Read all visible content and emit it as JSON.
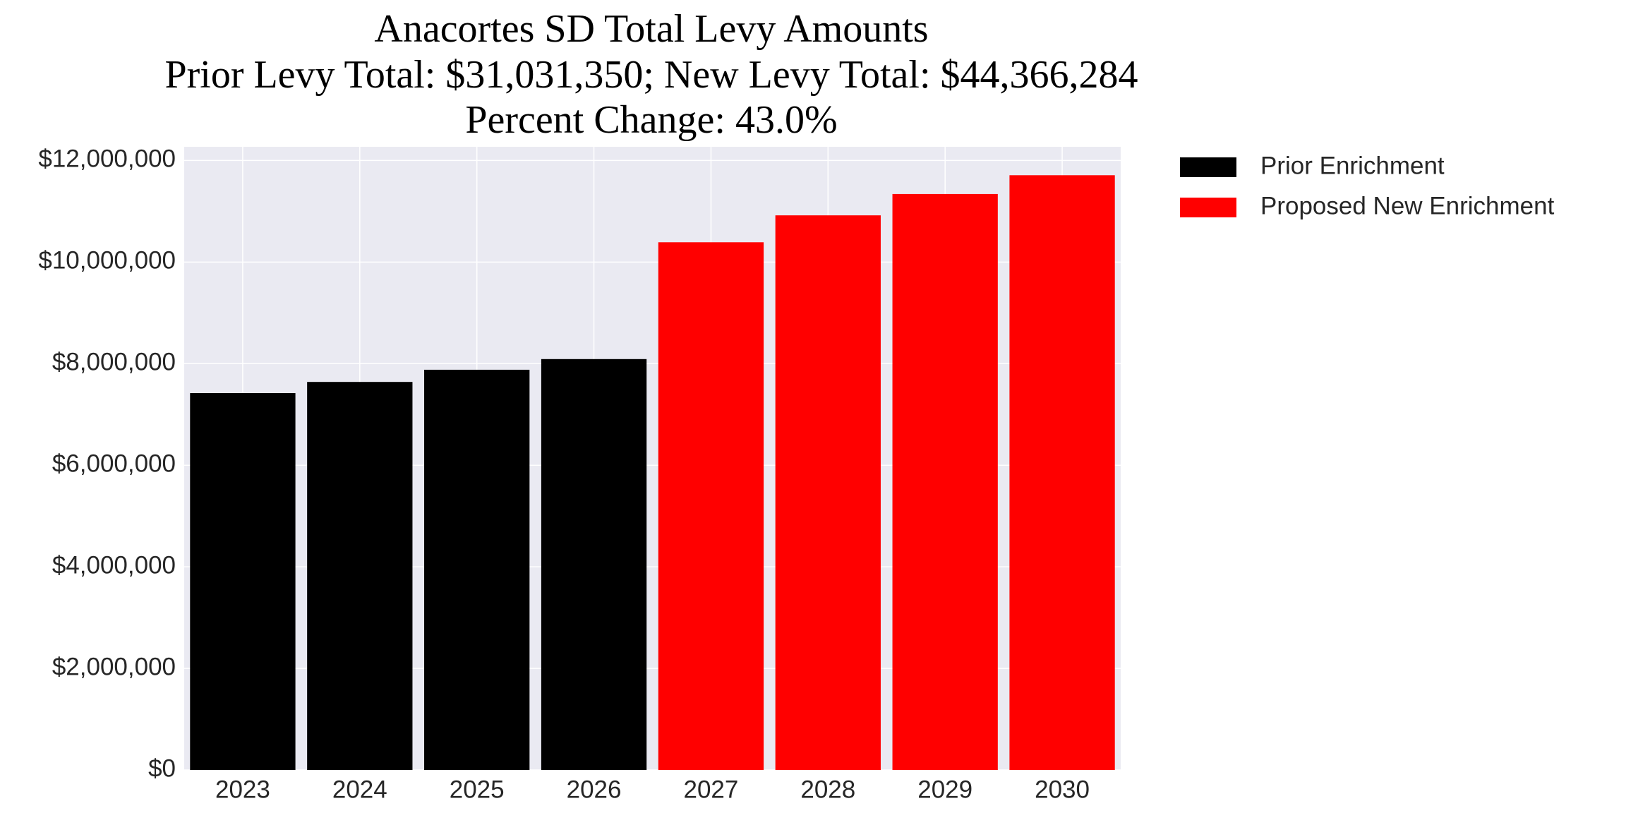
{
  "chart_data": {
    "type": "bar",
    "title": [
      "Anacortes SD Total Levy Amounts",
      "Prior Levy Total:  $31,031,350; New Levy Total: $44,366,284",
      "Percent Change: 43.0%"
    ],
    "categories": [
      "2023",
      "2024",
      "2025",
      "2026",
      "2027",
      "2028",
      "2029",
      "2030"
    ],
    "series": [
      {
        "name": "Prior Enrichment",
        "color": "#000000",
        "values": [
          7420000,
          7640000,
          7880000,
          8090000,
          null,
          null,
          null,
          null
        ]
      },
      {
        "name": "Proposed New Enrichment",
        "color": "#ff0000",
        "values": [
          null,
          null,
          null,
          null,
          10390000,
          10920000,
          11340000,
          11710000
        ]
      }
    ],
    "ylim": [
      0,
      12270000
    ],
    "yticks": [
      {
        "value": 0,
        "label": "$0"
      },
      {
        "value": 2000000,
        "label": "$2,000,000"
      },
      {
        "value": 4000000,
        "label": "$4,000,000"
      },
      {
        "value": 6000000,
        "label": "$6,000,000"
      },
      {
        "value": 8000000,
        "label": "$8,000,000"
      },
      {
        "value": 10000000,
        "label": "$10,000,000"
      },
      {
        "value": 12000000,
        "label": "$12,000,000"
      }
    ],
    "grid": true,
    "legend": "outside-upper-right"
  }
}
